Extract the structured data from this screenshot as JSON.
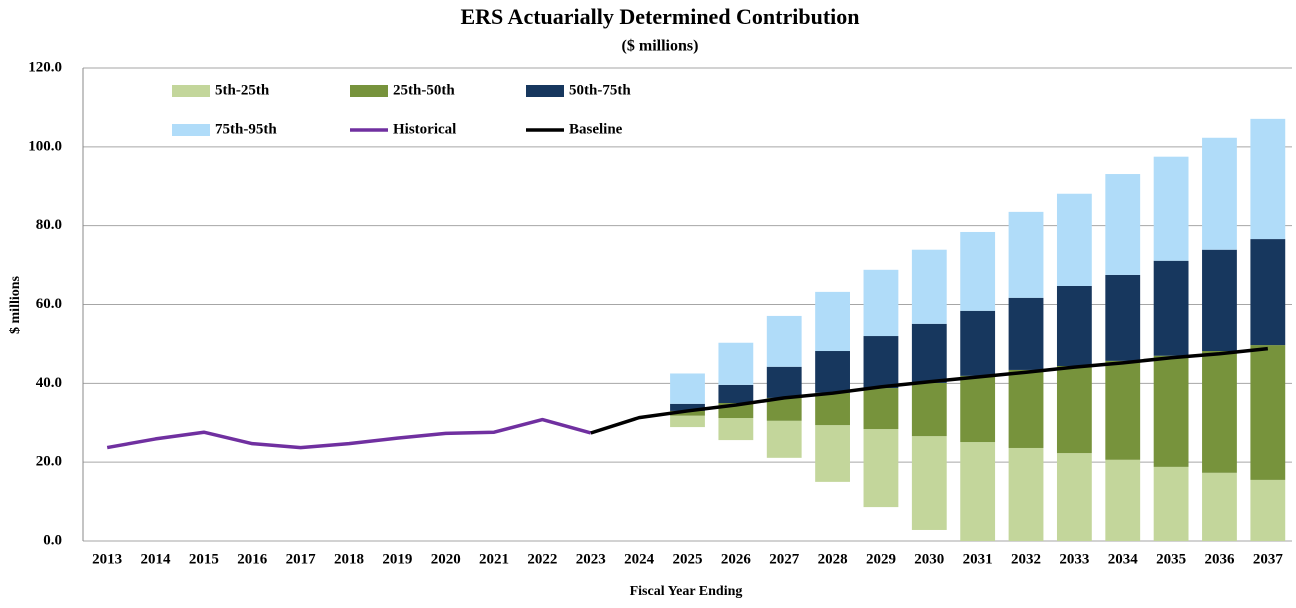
{
  "chart_data": {
    "type": "floating-stacked-bar-line",
    "title": "ERS Actuarially Determined  Contribution",
    "subtitle": "($ millions)",
    "y_label": "$ millions",
    "x_label": "Fiscal Year Ending",
    "categories": [
      "2013",
      "2014",
      "2015",
      "2016",
      "2017",
      "2018",
      "2019",
      "2020",
      "2021",
      "2022",
      "2023",
      "2024",
      "2025",
      "2026",
      "2027",
      "2028",
      "2029",
      "2030",
      "2031",
      "2032",
      "2033",
      "2034",
      "2035",
      "2036",
      "2037"
    ],
    "ylim": [
      0,
      120
    ],
    "yticks": [
      {
        "value": 0,
        "label": "0.0"
      },
      {
        "value": 20,
        "label": "20.0"
      },
      {
        "value": 40,
        "label": "40.0"
      },
      {
        "value": 60,
        "label": "60.0"
      },
      {
        "value": 80,
        "label": "80.0"
      },
      {
        "value": 100,
        "label": "100.0"
      },
      {
        "value": 120,
        "label": "120.0"
      }
    ],
    "grid": true,
    "series": [
      {
        "name": "5th-25th",
        "kind": "range",
        "color": "#c3d69b",
        "values": [
          null,
          null,
          null,
          null,
          null,
          null,
          null,
          null,
          null,
          null,
          null,
          null,
          [
            28.9,
            31.8
          ],
          [
            25.6,
            31.2
          ],
          [
            21.1,
            30.5
          ],
          [
            15.0,
            29.4
          ],
          [
            8.6,
            28.4
          ],
          [
            2.8,
            26.6
          ],
          [
            0,
            25.1
          ],
          [
            0,
            23.6
          ],
          [
            0,
            22.3
          ],
          [
            0,
            20.6
          ],
          [
            0,
            18.8
          ],
          [
            0,
            17.3
          ],
          [
            0,
            15.5
          ]
        ]
      },
      {
        "name": "25th-50th",
        "kind": "range",
        "color": "#77933c",
        "values": [
          null,
          null,
          null,
          null,
          null,
          null,
          null,
          null,
          null,
          null,
          null,
          null,
          [
            31.8,
            33.0
          ],
          [
            31.2,
            35.0
          ],
          [
            30.5,
            36.3
          ],
          [
            29.4,
            37.6
          ],
          [
            28.4,
            38.8
          ],
          [
            26.6,
            40.1
          ],
          [
            25.1,
            41.9
          ],
          [
            23.6,
            43.4
          ],
          [
            22.3,
            44.4
          ],
          [
            20.6,
            45.7
          ],
          [
            18.8,
            47.0
          ],
          [
            17.3,
            48.2
          ],
          [
            15.5,
            49.7
          ]
        ]
      },
      {
        "name": "50th-75th",
        "kind": "range",
        "color": "#17375e",
        "values": [
          null,
          null,
          null,
          null,
          null,
          null,
          null,
          null,
          null,
          null,
          null,
          null,
          [
            33.0,
            34.8
          ],
          [
            35.0,
            39.6
          ],
          [
            36.3,
            44.2
          ],
          [
            37.6,
            48.2
          ],
          [
            38.8,
            52.0
          ],
          [
            40.1,
            55.1
          ],
          [
            41.9,
            58.4
          ],
          [
            43.4,
            61.7
          ],
          [
            44.4,
            64.7
          ],
          [
            45.7,
            67.5
          ],
          [
            47.0,
            71.1
          ],
          [
            48.2,
            73.9
          ],
          [
            49.7,
            76.6
          ]
        ]
      },
      {
        "name": "75th-95th",
        "kind": "range",
        "color": "#b0dcf9",
        "values": [
          null,
          null,
          null,
          null,
          null,
          null,
          null,
          null,
          null,
          null,
          null,
          null,
          [
            34.8,
            42.5
          ],
          [
            39.6,
            50.3
          ],
          [
            44.2,
            57.1
          ],
          [
            48.2,
            63.2
          ],
          [
            52.0,
            68.8
          ],
          [
            55.1,
            73.9
          ],
          [
            58.4,
            78.4
          ],
          [
            61.7,
            83.5
          ],
          [
            64.7,
            88.1
          ],
          [
            67.5,
            93.1
          ],
          [
            71.1,
            97.5
          ],
          [
            73.9,
            102.3
          ],
          [
            76.6,
            107.1
          ]
        ]
      },
      {
        "name": "Historical",
        "kind": "line",
        "color": "#7030a0",
        "values": [
          23.7,
          25.9,
          27.6,
          24.7,
          23.7,
          24.7,
          26.1,
          27.3,
          27.6,
          30.8,
          27.4,
          null,
          null,
          null,
          null,
          null,
          null,
          null,
          null,
          null,
          null,
          null,
          null,
          null,
          null
        ]
      },
      {
        "name": "Baseline",
        "kind": "line",
        "color": "#000000",
        "values": [
          null,
          null,
          null,
          null,
          null,
          null,
          null,
          null,
          null,
          null,
          27.4,
          31.3,
          33.0,
          34.5,
          36.3,
          37.5,
          39.1,
          40.4,
          41.6,
          42.8,
          44.1,
          45.2,
          46.5,
          47.5,
          48.8
        ]
      }
    ]
  }
}
